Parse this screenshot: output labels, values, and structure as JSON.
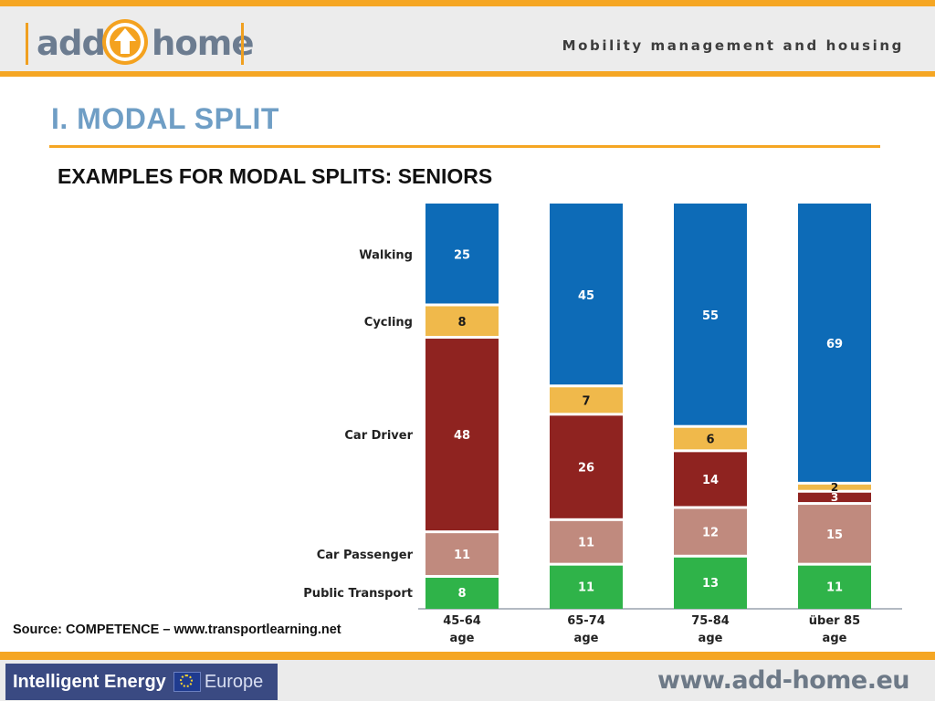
{
  "header": {
    "logo": {
      "word_left": "add",
      "word_right": "home"
    },
    "tagline": "Mobility management and housing"
  },
  "slide": {
    "title": "I. MODAL SPLIT",
    "subtitle": "EXAMPLES FOR MODAL SPLITS: SENIORS"
  },
  "source": "Source: COMPETENCE – www.transportlearning.net",
  "footer": {
    "program_name": "Intelligent Energy",
    "program_region": "Europe",
    "website": "www.add-home.eu"
  },
  "chart_data": {
    "type": "bar",
    "stacked": true,
    "title": "",
    "xlabel": "",
    "ylabel": "",
    "ylim": [
      0,
      100
    ],
    "grid": false,
    "legend": "left (category labels beside first bar)",
    "categories": [
      [
        "45-64",
        "age"
      ],
      [
        "65-74",
        "age"
      ],
      [
        "75-84",
        "age"
      ],
      [
        "über 85",
        "age"
      ]
    ],
    "series": [
      {
        "name": "Public Transport",
        "color": "#2fb349",
        "values": [
          8,
          11,
          13,
          11
        ]
      },
      {
        "name": "Car Passenger",
        "color": "#c08a7e",
        "values": [
          11,
          11,
          12,
          15
        ]
      },
      {
        "name": "Car Driver",
        "color": "#8f2320",
        "values": [
          48,
          26,
          14,
          3
        ]
      },
      {
        "name": "Cycling",
        "color": "#f0b94b",
        "values": [
          8,
          7,
          6,
          2
        ]
      },
      {
        "name": "Walking",
        "color": "#0d6bb7",
        "values": [
          25,
          45,
          55,
          69
        ]
      }
    ]
  }
}
